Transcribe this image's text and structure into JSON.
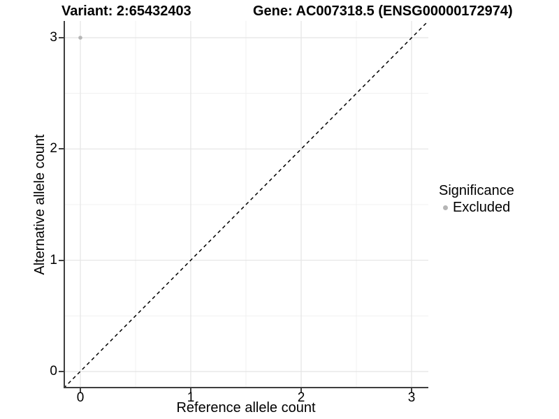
{
  "titles": {
    "variant": "Variant: 2:65432403",
    "gene": "Gene: AC007318.5 (ENSG00000172974)"
  },
  "axes": {
    "x_label": "Reference allele count",
    "y_label": "Alternative allele count",
    "x_ticks": [
      0,
      1,
      2,
      3
    ],
    "y_ticks": [
      0,
      1,
      2,
      3
    ]
  },
  "legend": {
    "title": "Significance",
    "items": [
      {
        "label": "Excluded",
        "color": "#b5b5b5"
      }
    ]
  },
  "colors": {
    "background": "#ffffff",
    "grid_major": "#e4e4e4",
    "grid_minor": "#f0f0f0",
    "axis_line": "#3f3f3f",
    "tick_mark": "#3f3f3f",
    "reference_line": "#000000",
    "point": "#b5b5b5",
    "text": "#000000"
  },
  "chart_data": {
    "type": "scatter",
    "title": "Variant: 2:65432403   Gene: AC007318.5 (ENSG00000172974)",
    "xlabel": "Reference allele count",
    "ylabel": "Alternative allele count",
    "xlim": [
      -0.15,
      3.15
    ],
    "ylim": [
      -0.15,
      3.15
    ],
    "x_ticks": [
      0,
      1,
      2,
      3
    ],
    "y_ticks": [
      0,
      1,
      2,
      3
    ],
    "grid": "major and minor, light grey on white",
    "legend_position": "right",
    "series": [
      {
        "name": "Excluded",
        "color": "#b5b5b5",
        "points": [
          {
            "x": 0,
            "y": 3
          }
        ]
      }
    ],
    "reference_line": {
      "type": "identity y=x",
      "style": "dashed",
      "color": "#000000",
      "from": [
        -0.15,
        -0.15
      ],
      "to": [
        3.15,
        3.15
      ]
    }
  }
}
